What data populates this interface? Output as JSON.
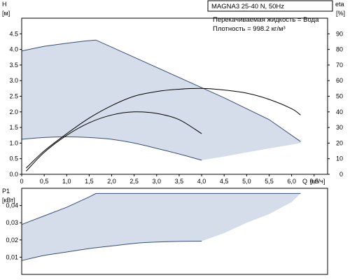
{
  "chart_data": [
    {
      "type": "line",
      "title": "MAGNA3 25-40 N, 50Hz",
      "notes": [
        "Перекачиваемая жидкость = Вода",
        "Плотность = 998.2 кг/м³"
      ],
      "ylabel_symbol": "H",
      "ylabel_unit": "[м]",
      "ylabel_right": "eta",
      "ylabel_right_unit": "[%]",
      "xlabel_symbol": "Q",
      "xlabel_unit": "[м³/ч]",
      "xlim": [
        0,
        6.8
      ],
      "ylim": [
        0,
        5.0
      ],
      "ylim_right": [
        0,
        100
      ],
      "grid": false,
      "x_ticks": [
        0,
        0.5,
        1.0,
        1.5,
        2.0,
        2.5,
        3.0,
        3.5,
        4.0,
        4.5,
        5.0,
        5.5,
        6.0,
        6.5
      ],
      "x_tick_labels": [
        "0",
        "0,5",
        "1,0",
        "1,5",
        "2,0",
        "2,5",
        "3,0",
        "3,5",
        "4,0",
        "4,5",
        "5,0",
        "5,5",
        "6,0",
        "6,5"
      ],
      "y_ticks": [
        0,
        0.5,
        1.0,
        1.5,
        2.0,
        2.5,
        3.0,
        3.5,
        4.0,
        4.5
      ],
      "y_tick_labels": [
        "0.0",
        "0.5",
        "1.0",
        "1.5",
        "2.0",
        "2.5",
        "3.0",
        "3.5",
        "4.0",
        "4.5"
      ],
      "y_right_ticks": [
        0,
        10,
        20,
        30,
        40,
        50,
        60,
        70,
        80,
        90
      ],
      "y_right_tick_labels": [
        "0",
        "10",
        "20",
        "30",
        "40",
        "50",
        "60",
        "70",
        "80",
        "90"
      ],
      "area": {
        "name": "operating range",
        "color": "#d4dde9",
        "outline": "#3a4d78",
        "upper": [
          [
            0,
            3.95
          ],
          [
            0.5,
            4.1
          ],
          [
            1.0,
            4.2
          ],
          [
            1.4,
            4.27
          ],
          [
            1.65,
            4.3
          ],
          [
            2.5,
            3.75
          ],
          [
            3.5,
            3.1
          ],
          [
            4.5,
            2.45
          ],
          [
            5.5,
            1.75
          ],
          [
            6.2,
            1.05
          ]
        ],
        "lower": [
          [
            0,
            1.12
          ],
          [
            0.5,
            1.18
          ],
          [
            1.0,
            1.2
          ],
          [
            1.5,
            1.18
          ],
          [
            2.0,
            1.12
          ],
          [
            2.5,
            1.0
          ],
          [
            3.0,
            0.83
          ],
          [
            3.5,
            0.65
          ],
          [
            4.0,
            0.45
          ],
          [
            4.5,
            0.57
          ],
          [
            5.0,
            0.7
          ],
          [
            5.5,
            0.83
          ],
          [
            6.0,
            0.95
          ],
          [
            6.2,
            1.0
          ]
        ]
      },
      "series": [
        {
          "axis": "right",
          "color": "#000000",
          "points": [
            [
              0.1,
              2
            ],
            [
              0.5,
              14
            ],
            [
              1.0,
              25
            ],
            [
              1.5,
              33
            ],
            [
              2.0,
              38
            ],
            [
              2.5,
              40
            ],
            [
              3.0,
              39
            ],
            [
              3.5,
              35
            ],
            [
              4.0,
              26
            ]
          ]
        },
        {
          "axis": "right",
          "color": "#000000",
          "points": [
            [
              0.1,
              4
            ],
            [
              0.5,
              15
            ],
            [
              1.0,
              26
            ],
            [
              1.5,
              36
            ],
            [
              2.0,
              44
            ],
            [
              2.5,
              50
            ],
            [
              3.0,
              53
            ],
            [
              3.5,
              54.5
            ],
            [
              4.0,
              55
            ],
            [
              4.5,
              54
            ],
            [
              5.0,
              52
            ],
            [
              5.5,
              48
            ],
            [
              6.0,
              42
            ],
            [
              6.2,
              38
            ]
          ]
        }
      ]
    },
    {
      "type": "area",
      "ylabel_symbol": "P1",
      "ylabel_unit": "[кВт]",
      "xlim": [
        0,
        6.8
      ],
      "ylim": [
        0,
        0.05
      ],
      "grid": false,
      "y_ticks": [
        0.01,
        0.02,
        0.03,
        0.04
      ],
      "y_tick_labels": [
        "0,01",
        "0,02",
        "0,03",
        "0,04"
      ],
      "area": {
        "name": "power range",
        "color": "#d4dde9",
        "outline": "#3a4d78",
        "upper": [
          [
            0,
            0.029
          ],
          [
            0.5,
            0.034
          ],
          [
            1.0,
            0.039
          ],
          [
            1.5,
            0.045
          ],
          [
            1.65,
            0.047
          ],
          [
            6.2,
            0.047
          ]
        ],
        "lower": [
          [
            0,
            0.008
          ],
          [
            0.5,
            0.011
          ],
          [
            1.0,
            0.013
          ],
          [
            1.5,
            0.015
          ],
          [
            2.0,
            0.0165
          ],
          [
            2.5,
            0.018
          ],
          [
            3.0,
            0.0188
          ],
          [
            3.5,
            0.0192
          ],
          [
            4.0,
            0.0193
          ],
          [
            4.5,
            0.024
          ],
          [
            5.0,
            0.03
          ],
          [
            5.5,
            0.035
          ],
          [
            6.0,
            0.042
          ],
          [
            6.2,
            0.047
          ]
        ]
      }
    }
  ]
}
